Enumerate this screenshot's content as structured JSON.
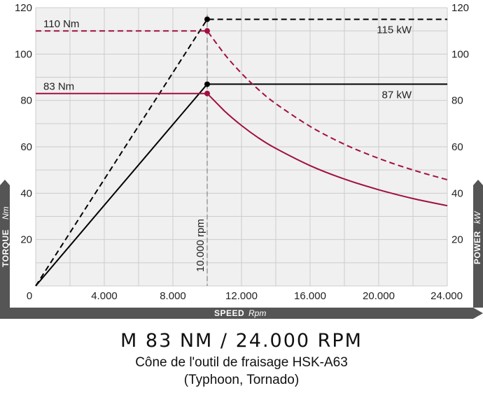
{
  "chart_data": {
    "type": "line",
    "xlabel": "SPEED",
    "xlabel_unit": "Rpm",
    "ylabel_left": "TORQUE",
    "ylabel_left_unit": "Nm",
    "ylabel_right": "POWER",
    "ylabel_right_unit": "kW",
    "xlim": [
      0,
      24000
    ],
    "ylim": [
      0,
      120
    ],
    "x_ticks": [
      "0",
      "4.000",
      "8.000",
      "12.000",
      "16.000",
      "20.000",
      "24.000"
    ],
    "x_tick_values": [
      0,
      4000,
      8000,
      12000,
      16000,
      20000,
      24000
    ],
    "y_ticks": [
      "20",
      "40",
      "60",
      "80",
      "100",
      "120"
    ],
    "y_tick_values": [
      20,
      40,
      60,
      80,
      100,
      120
    ],
    "grid": true,
    "vertical_marker": {
      "x": 10000,
      "label": "10.000 rpm"
    },
    "series": [
      {
        "kind": "power",
        "style": "solid",
        "color": "#000000",
        "x": [
          0,
          10000,
          24000
        ],
        "y": [
          0,
          87,
          87
        ]
      },
      {
        "kind": "power",
        "style": "dashed",
        "color": "#000000",
        "x": [
          0,
          10000,
          24000
        ],
        "y": [
          0,
          115,
          115
        ]
      },
      {
        "kind": "torque",
        "style": "solid",
        "color": "#a01040",
        "x": [
          0,
          10000,
          11000,
          12000,
          13000,
          14000,
          16000,
          18000,
          20000,
          22000,
          24000
        ],
        "y": [
          83,
          83,
          75.5,
          69.2,
          63.8,
          59.3,
          51.9,
          46.1,
          41.5,
          37.7,
          34.6
        ]
      },
      {
        "kind": "torque",
        "style": "dashed",
        "color": "#a01040",
        "x": [
          0,
          10000,
          11000,
          12000,
          13000,
          14000,
          16000,
          18000,
          20000,
          22000,
          24000
        ],
        "y": [
          110,
          110,
          100,
          91.7,
          84.6,
          78.6,
          68.8,
          61.1,
          55,
          50,
          45.8
        ]
      }
    ],
    "annotations": [
      {
        "text": "110 Nm",
        "x": 1000,
        "y": 110
      },
      {
        "text": "83 Nm",
        "x": 1000,
        "y": 83
      },
      {
        "text": "115 kW",
        "x": 22500,
        "y": 115
      },
      {
        "text": "87 kW",
        "x": 22500,
        "y": 87
      }
    ]
  },
  "title": "M 83 NM / 24.000 RPM",
  "subtitle": "Cône de l'outil de fraisage HSK-A63",
  "subtitle2": "(Typhoon, Tornado)",
  "colors": {
    "torque": "#a01040",
    "power": "#000000",
    "axis_band": "#555555",
    "grid": "#cccccc"
  }
}
